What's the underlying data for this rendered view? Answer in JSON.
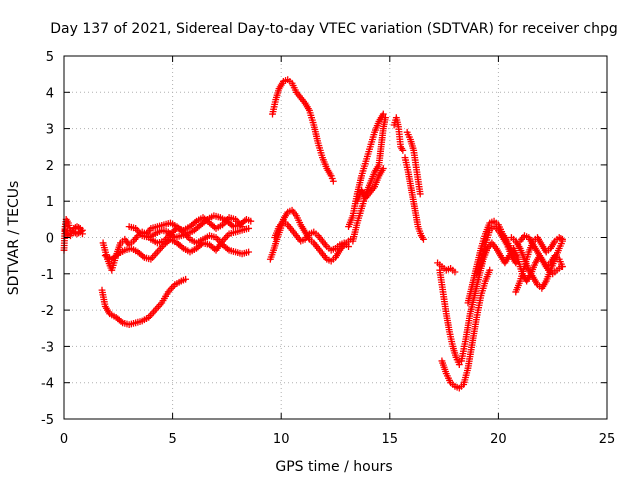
{
  "chart_data": {
    "type": "scatter",
    "title": "Day 137 of 2021, Sidereal Day-to-day VTEC variation (SDTVAR) for receiver chpg",
    "xlabel": "GPS time / hours",
    "ylabel": "SDTVAR / TECUs",
    "xlim": [
      0,
      25
    ],
    "ylim": [
      -5,
      5
    ],
    "x_ticks": [
      0,
      5,
      10,
      15,
      20,
      25
    ],
    "x_tick_labels": [
      "0",
      "5",
      "10",
      "15",
      "20",
      "25"
    ],
    "y_ticks": [
      -5,
      -4,
      -3,
      -2,
      -1,
      0,
      1,
      2,
      3,
      4,
      5
    ],
    "y_tick_labels": [
      "-5",
      "-4",
      "-3",
      "-2",
      "-1",
      "0",
      "1",
      "2",
      "3",
      "4",
      "5"
    ],
    "grid": true,
    "marker": "plus",
    "color": "#ff0000",
    "segments": [
      [
        [
          0.0,
          -0.35
        ],
        [
          0.05,
          0.3
        ],
        [
          0.1,
          0.5
        ],
        [
          0.2,
          0.4
        ],
        [
          0.3,
          0.2
        ],
        [
          0.45,
          0.15
        ],
        [
          0.6,
          0.1
        ],
        [
          0.75,
          0.15
        ],
        [
          0.85,
          0.2
        ]
      ],
      [
        [
          0.05,
          0.2
        ],
        [
          0.15,
          0.1
        ],
        [
          0.3,
          0.05
        ],
        [
          0.45,
          0.25
        ],
        [
          0.6,
          0.3
        ],
        [
          0.75,
          0.25
        ],
        [
          0.85,
          0.1
        ]
      ],
      [
        [
          1.75,
          -1.45
        ],
        [
          1.9,
          -1.9
        ],
        [
          2.1,
          -2.1
        ],
        [
          2.4,
          -2.2
        ],
        [
          2.7,
          -2.35
        ],
        [
          3.0,
          -2.4
        ],
        [
          3.3,
          -2.35
        ],
        [
          3.6,
          -2.3
        ],
        [
          3.9,
          -2.2
        ],
        [
          4.2,
          -2.0
        ],
        [
          4.5,
          -1.8
        ],
        [
          4.8,
          -1.5
        ],
        [
          5.1,
          -1.3
        ],
        [
          5.4,
          -1.2
        ],
        [
          5.6,
          -1.15
        ]
      ],
      [
        [
          1.8,
          -0.15
        ],
        [
          2.0,
          -0.6
        ],
        [
          2.2,
          -0.9
        ],
        [
          2.4,
          -0.5
        ],
        [
          2.6,
          -0.15
        ],
        [
          2.8,
          -0.05
        ],
        [
          3.0,
          -0.2
        ],
        [
          3.2,
          -0.1
        ],
        [
          3.4,
          0.05
        ],
        [
          3.6,
          0.15
        ],
        [
          3.8,
          0.1
        ],
        [
          4.0,
          0.25
        ],
        [
          4.3,
          0.3
        ],
        [
          4.6,
          0.35
        ],
        [
          4.9,
          0.4
        ],
        [
          5.2,
          0.3
        ],
        [
          5.5,
          0.15
        ],
        [
          5.8,
          -0.05
        ],
        [
          6.1,
          -0.15
        ],
        [
          6.4,
          -0.05
        ],
        [
          6.7,
          0.05
        ],
        [
          7.0,
          0.0
        ],
        [
          7.3,
          -0.2
        ],
        [
          7.6,
          -0.35
        ],
        [
          7.9,
          -0.4
        ],
        [
          8.2,
          -0.45
        ],
        [
          8.5,
          -0.4
        ]
      ],
      [
        [
          1.9,
          -0.5
        ],
        [
          2.2,
          -0.6
        ],
        [
          2.5,
          -0.45
        ],
        [
          2.8,
          -0.35
        ],
        [
          3.1,
          -0.3
        ],
        [
          3.4,
          -0.4
        ],
        [
          3.7,
          -0.55
        ],
        [
          4.0,
          -0.6
        ],
        [
          4.3,
          -0.4
        ],
        [
          4.6,
          -0.2
        ],
        [
          4.9,
          -0.05
        ],
        [
          5.2,
          -0.15
        ],
        [
          5.5,
          -0.3
        ],
        [
          5.8,
          -0.4
        ],
        [
          6.1,
          -0.3
        ],
        [
          6.4,
          -0.15
        ],
        [
          6.7,
          -0.2
        ],
        [
          7.0,
          -0.35
        ],
        [
          7.3,
          -0.1
        ],
        [
          7.6,
          0.1
        ],
        [
          7.9,
          0.15
        ],
        [
          8.2,
          0.2
        ],
        [
          8.5,
          0.25
        ]
      ],
      [
        [
          3.0,
          0.3
        ],
        [
          3.3,
          0.25
        ],
        [
          3.6,
          0.05
        ],
        [
          3.9,
          0.0
        ],
        [
          4.2,
          0.1
        ],
        [
          4.5,
          0.2
        ],
        [
          4.8,
          0.15
        ],
        [
          5.1,
          0.0
        ],
        [
          5.4,
          0.05
        ],
        [
          5.7,
          0.1
        ],
        [
          6.0,
          0.2
        ],
        [
          6.3,
          0.35
        ],
        [
          6.6,
          0.5
        ],
        [
          6.9,
          0.6
        ],
        [
          7.2,
          0.55
        ],
        [
          7.5,
          0.45
        ],
        [
          7.8,
          0.3
        ],
        [
          8.1,
          0.35
        ],
        [
          8.4,
          0.5
        ],
        [
          8.6,
          0.45
        ]
      ],
      [
        [
          4.0,
          -0.05
        ],
        [
          4.3,
          -0.15
        ],
        [
          4.6,
          -0.1
        ],
        [
          4.9,
          0.1
        ],
        [
          5.2,
          0.25
        ],
        [
          5.5,
          0.2
        ],
        [
          5.8,
          0.3
        ],
        [
          6.1,
          0.45
        ],
        [
          6.4,
          0.55
        ],
        [
          6.7,
          0.4
        ],
        [
          7.0,
          0.25
        ],
        [
          7.3,
          0.35
        ],
        [
          7.6,
          0.55
        ],
        [
          7.9,
          0.5
        ],
        [
          8.2,
          0.3
        ]
      ],
      [
        [
          9.6,
          3.4
        ],
        [
          9.75,
          3.8
        ],
        [
          9.9,
          4.1
        ],
        [
          10.1,
          4.3
        ],
        [
          10.3,
          4.35
        ],
        [
          10.5,
          4.25
        ],
        [
          10.7,
          4.0
        ],
        [
          10.9,
          3.85
        ],
        [
          11.1,
          3.7
        ],
        [
          11.3,
          3.5
        ],
        [
          11.5,
          3.1
        ],
        [
          11.7,
          2.6
        ],
        [
          11.9,
          2.2
        ],
        [
          12.1,
          1.9
        ],
        [
          12.3,
          1.7
        ],
        [
          12.4,
          1.55
        ]
      ],
      [
        [
          9.5,
          -0.6
        ],
        [
          9.65,
          -0.35
        ],
        [
          9.8,
          -0.05
        ],
        [
          9.95,
          0.2
        ],
        [
          10.1,
          0.5
        ],
        [
          10.3,
          0.7
        ],
        [
          10.5,
          0.75
        ],
        [
          10.7,
          0.6
        ],
        [
          10.9,
          0.35
        ],
        [
          11.1,
          0.15
        ],
        [
          11.3,
          -0.05
        ],
        [
          11.5,
          -0.15
        ],
        [
          11.7,
          -0.3
        ],
        [
          11.9,
          -0.45
        ],
        [
          12.1,
          -0.6
        ],
        [
          12.3,
          -0.65
        ],
        [
          12.5,
          -0.55
        ],
        [
          12.7,
          -0.35
        ],
        [
          12.9,
          -0.2
        ],
        [
          13.1,
          -0.1
        ],
        [
          13.2,
          -0.05
        ]
      ],
      [
        [
          9.7,
          0.0
        ],
        [
          9.9,
          0.3
        ],
        [
          10.1,
          0.45
        ],
        [
          10.3,
          0.35
        ],
        [
          10.5,
          0.2
        ],
        [
          10.7,
          0.05
        ],
        [
          10.9,
          -0.1
        ],
        [
          11.1,
          -0.05
        ],
        [
          11.3,
          0.1
        ],
        [
          11.5,
          0.15
        ],
        [
          11.7,
          0.05
        ],
        [
          11.9,
          -0.1
        ],
        [
          12.1,
          -0.25
        ],
        [
          12.3,
          -0.35
        ],
        [
          12.5,
          -0.3
        ],
        [
          12.7,
          -0.2
        ],
        [
          12.9,
          -0.15
        ],
        [
          13.1,
          -0.25
        ]
      ],
      [
        [
          13.1,
          0.3
        ],
        [
          13.3,
          0.6
        ],
        [
          13.5,
          1.2
        ],
        [
          13.7,
          1.7
        ],
        [
          13.9,
          2.1
        ],
        [
          14.1,
          2.5
        ],
        [
          14.3,
          2.9
        ],
        [
          14.5,
          3.2
        ],
        [
          14.7,
          3.4
        ]
      ],
      [
        [
          13.3,
          -0.1
        ],
        [
          13.5,
          0.4
        ],
        [
          13.7,
          0.8
        ],
        [
          13.9,
          1.2
        ],
        [
          14.1,
          1.5
        ],
        [
          14.3,
          1.8
        ],
        [
          14.5,
          2.0
        ],
        [
          14.6,
          2.5
        ],
        [
          14.7,
          3.0
        ],
        [
          14.8,
          3.3
        ]
      ],
      [
        [
          13.5,
          1.0
        ],
        [
          13.7,
          1.3
        ],
        [
          13.9,
          1.1
        ],
        [
          14.1,
          1.25
        ],
        [
          14.3,
          1.4
        ],
        [
          14.5,
          1.7
        ],
        [
          14.7,
          1.9
        ]
      ],
      [
        [
          15.2,
          3.1
        ],
        [
          15.3,
          3.3
        ],
        [
          15.4,
          3.05
        ],
        [
          15.5,
          2.5
        ],
        [
          15.6,
          2.4
        ]
      ],
      [
        [
          15.8,
          2.9
        ],
        [
          15.95,
          2.7
        ],
        [
          16.1,
          2.4
        ],
        [
          16.2,
          2.0
        ],
        [
          16.3,
          1.6
        ],
        [
          16.4,
          1.2
        ]
      ],
      [
        [
          15.7,
          2.2
        ],
        [
          15.85,
          1.8
        ],
        [
          16.0,
          1.3
        ],
        [
          16.15,
          0.8
        ],
        [
          16.3,
          0.3
        ],
        [
          16.45,
          0.05
        ],
        [
          16.55,
          -0.05
        ]
      ],
      [
        [
          17.2,
          -0.7
        ],
        [
          17.4,
          -0.8
        ],
        [
          17.6,
          -0.9
        ],
        [
          17.8,
          -0.85
        ],
        [
          18.0,
          -0.95
        ]
      ],
      [
        [
          17.3,
          -0.9
        ],
        [
          17.45,
          -1.5
        ],
        [
          17.6,
          -2.1
        ],
        [
          17.75,
          -2.6
        ],
        [
          17.9,
          -3.0
        ],
        [
          18.05,
          -3.3
        ],
        [
          18.2,
          -3.5
        ]
      ],
      [
        [
          17.4,
          -3.4
        ],
        [
          17.6,
          -3.75
        ],
        [
          17.8,
          -4.0
        ],
        [
          18.0,
          -4.1
        ],
        [
          18.2,
          -4.15
        ],
        [
          18.4,
          -4.05
        ],
        [
          18.6,
          -3.6
        ],
        [
          18.8,
          -2.9
        ],
        [
          19.0,
          -2.2
        ],
        [
          19.2,
          -1.6
        ],
        [
          19.4,
          -1.2
        ],
        [
          19.6,
          -0.9
        ]
      ],
      [
        [
          18.3,
          -3.4
        ],
        [
          18.5,
          -2.8
        ],
        [
          18.7,
          -2.1
        ],
        [
          18.9,
          -1.6
        ],
        [
          19.1,
          -1.1
        ],
        [
          19.3,
          -0.6
        ],
        [
          19.5,
          -0.3
        ],
        [
          19.7,
          -0.15
        ],
        [
          19.9,
          -0.3
        ],
        [
          20.1,
          -0.5
        ],
        [
          20.3,
          -0.7
        ],
        [
          20.5,
          -0.5
        ]
      ],
      [
        [
          18.6,
          -1.8
        ],
        [
          18.8,
          -1.3
        ],
        [
          19.0,
          -0.8
        ],
        [
          19.2,
          -0.3
        ],
        [
          19.4,
          0.1
        ],
        [
          19.6,
          0.4
        ],
        [
          19.8,
          0.45
        ],
        [
          20.0,
          0.35
        ],
        [
          20.2,
          0.1
        ],
        [
          20.4,
          -0.1
        ],
        [
          20.6,
          -0.35
        ],
        [
          20.8,
          -0.5
        ]
      ],
      [
        [
          19.0,
          -1.0
        ],
        [
          19.2,
          -0.7
        ],
        [
          19.4,
          -0.2
        ],
        [
          19.6,
          0.2
        ],
        [
          19.8,
          0.3
        ],
        [
          20.0,
          0.2
        ],
        [
          20.2,
          0.0
        ],
        [
          20.4,
          -0.2
        ],
        [
          20.6,
          -0.5
        ],
        [
          20.8,
          -0.7
        ]
      ],
      [
        [
          20.6,
          0.0
        ],
        [
          20.8,
          -0.1
        ],
        [
          21.0,
          -0.3
        ],
        [
          21.2,
          -0.6
        ],
        [
          21.4,
          -0.9
        ],
        [
          21.6,
          -1.1
        ],
        [
          21.8,
          -1.3
        ],
        [
          22.0,
          -1.4
        ],
        [
          22.2,
          -1.2
        ],
        [
          22.4,
          -0.9
        ],
        [
          22.6,
          -0.6
        ],
        [
          22.8,
          -0.3
        ],
        [
          22.95,
          -0.1
        ]
      ],
      [
        [
          20.7,
          -0.3
        ],
        [
          20.9,
          -0.6
        ],
        [
          21.1,
          -1.0
        ],
        [
          21.3,
          -1.2
        ],
        [
          21.5,
          -1.0
        ],
        [
          21.7,
          -0.7
        ],
        [
          21.9,
          -0.5
        ],
        [
          22.1,
          -0.7
        ],
        [
          22.3,
          -0.9
        ],
        [
          22.5,
          -1.0
        ],
        [
          22.7,
          -0.9
        ],
        [
          22.9,
          -0.8
        ]
      ],
      [
        [
          20.8,
          -1.5
        ],
        [
          21.0,
          -1.2
        ],
        [
          21.2,
          -0.8
        ],
        [
          21.4,
          -0.4
        ],
        [
          21.6,
          -0.1
        ],
        [
          21.8,
          0.0
        ],
        [
          22.0,
          -0.2
        ],
        [
          22.2,
          -0.4
        ],
        [
          22.4,
          -0.3
        ],
        [
          22.6,
          -0.1
        ],
        [
          22.8,
          0.0
        ],
        [
          22.95,
          -0.05
        ]
      ],
      [
        [
          21.0,
          -0.1
        ],
        [
          21.2,
          0.05
        ],
        [
          21.4,
          0.0
        ],
        [
          21.6,
          -0.2
        ],
        [
          21.8,
          -0.4
        ],
        [
          22.0,
          -0.6
        ],
        [
          22.2,
          -0.8
        ],
        [
          22.4,
          -0.7
        ],
        [
          22.6,
          -0.5
        ],
        [
          22.8,
          -0.6
        ],
        [
          22.95,
          -0.8
        ]
      ]
    ]
  }
}
